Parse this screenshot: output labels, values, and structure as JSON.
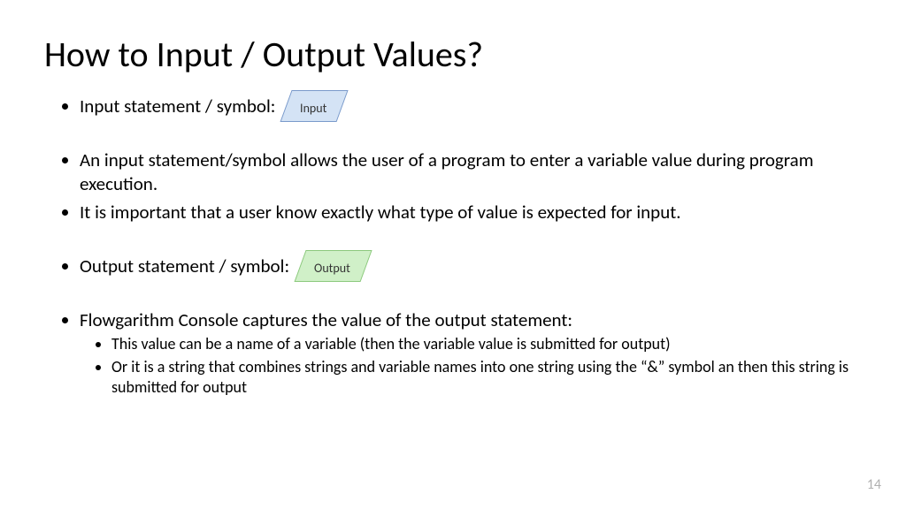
{
  "title": "How to Input / Output Values?",
  "bullets": {
    "b1_text": "Input statement / symbol:",
    "b2_text": "An input statement/symbol allows the user of a program to enter a variable value during program execution.",
    "b3_text": "It is important that a user know exactly what type of value is expected for input.",
    "b4_text": "Output statement / symbol:",
    "b5_text": "Flowgarithm Console captures the value of the output statement:",
    "b5_sub1": "This value can be a name of a variable (then the variable value is submitted for output)",
    "b5_sub2": "Or it is a string that combines strings and variable names into one string using the “&” symbol an then this string is submitted for output"
  },
  "shapes": {
    "input": {
      "label": "Input",
      "fill": "#d4e3f5",
      "border": "#7a9acb"
    },
    "output": {
      "label": "Output",
      "fill": "#d0f0c8",
      "border": "#8cc97d"
    }
  },
  "page_number": "14",
  "colors": {
    "text": "#000000",
    "page_num": "#b0b0b0",
    "background": "#ffffff"
  }
}
